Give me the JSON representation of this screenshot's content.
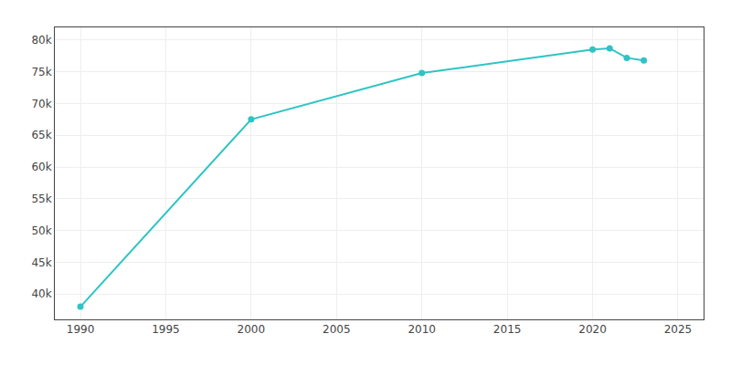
{
  "chart_data": {
    "type": "line",
    "x": [
      1990,
      2000,
      2010,
      2020,
      2021,
      2022,
      2023
    ],
    "values": [
      38000,
      67500,
      74800,
      78500,
      78700,
      77200,
      76800
    ],
    "color": "#2EC4C4",
    "marker": "circle",
    "xlim": [
      1988.5,
      2026.5
    ],
    "xticks": [
      1990,
      1995,
      2000,
      2005,
      2010,
      2015,
      2020,
      2025
    ],
    "ylim": [
      36000,
      82000
    ],
    "yticks": [
      {
        "value": 40000,
        "label": "40k"
      },
      {
        "value": 45000,
        "label": "45k"
      },
      {
        "value": 50000,
        "label": "50k"
      },
      {
        "value": 55000,
        "label": "55k"
      },
      {
        "value": 60000,
        "label": "60k"
      },
      {
        "value": 65000,
        "label": "65k"
      },
      {
        "value": 70000,
        "label": "70k"
      },
      {
        "value": 75000,
        "label": "75k"
      },
      {
        "value": 80000,
        "label": "80k"
      }
    ],
    "grid": true
  }
}
